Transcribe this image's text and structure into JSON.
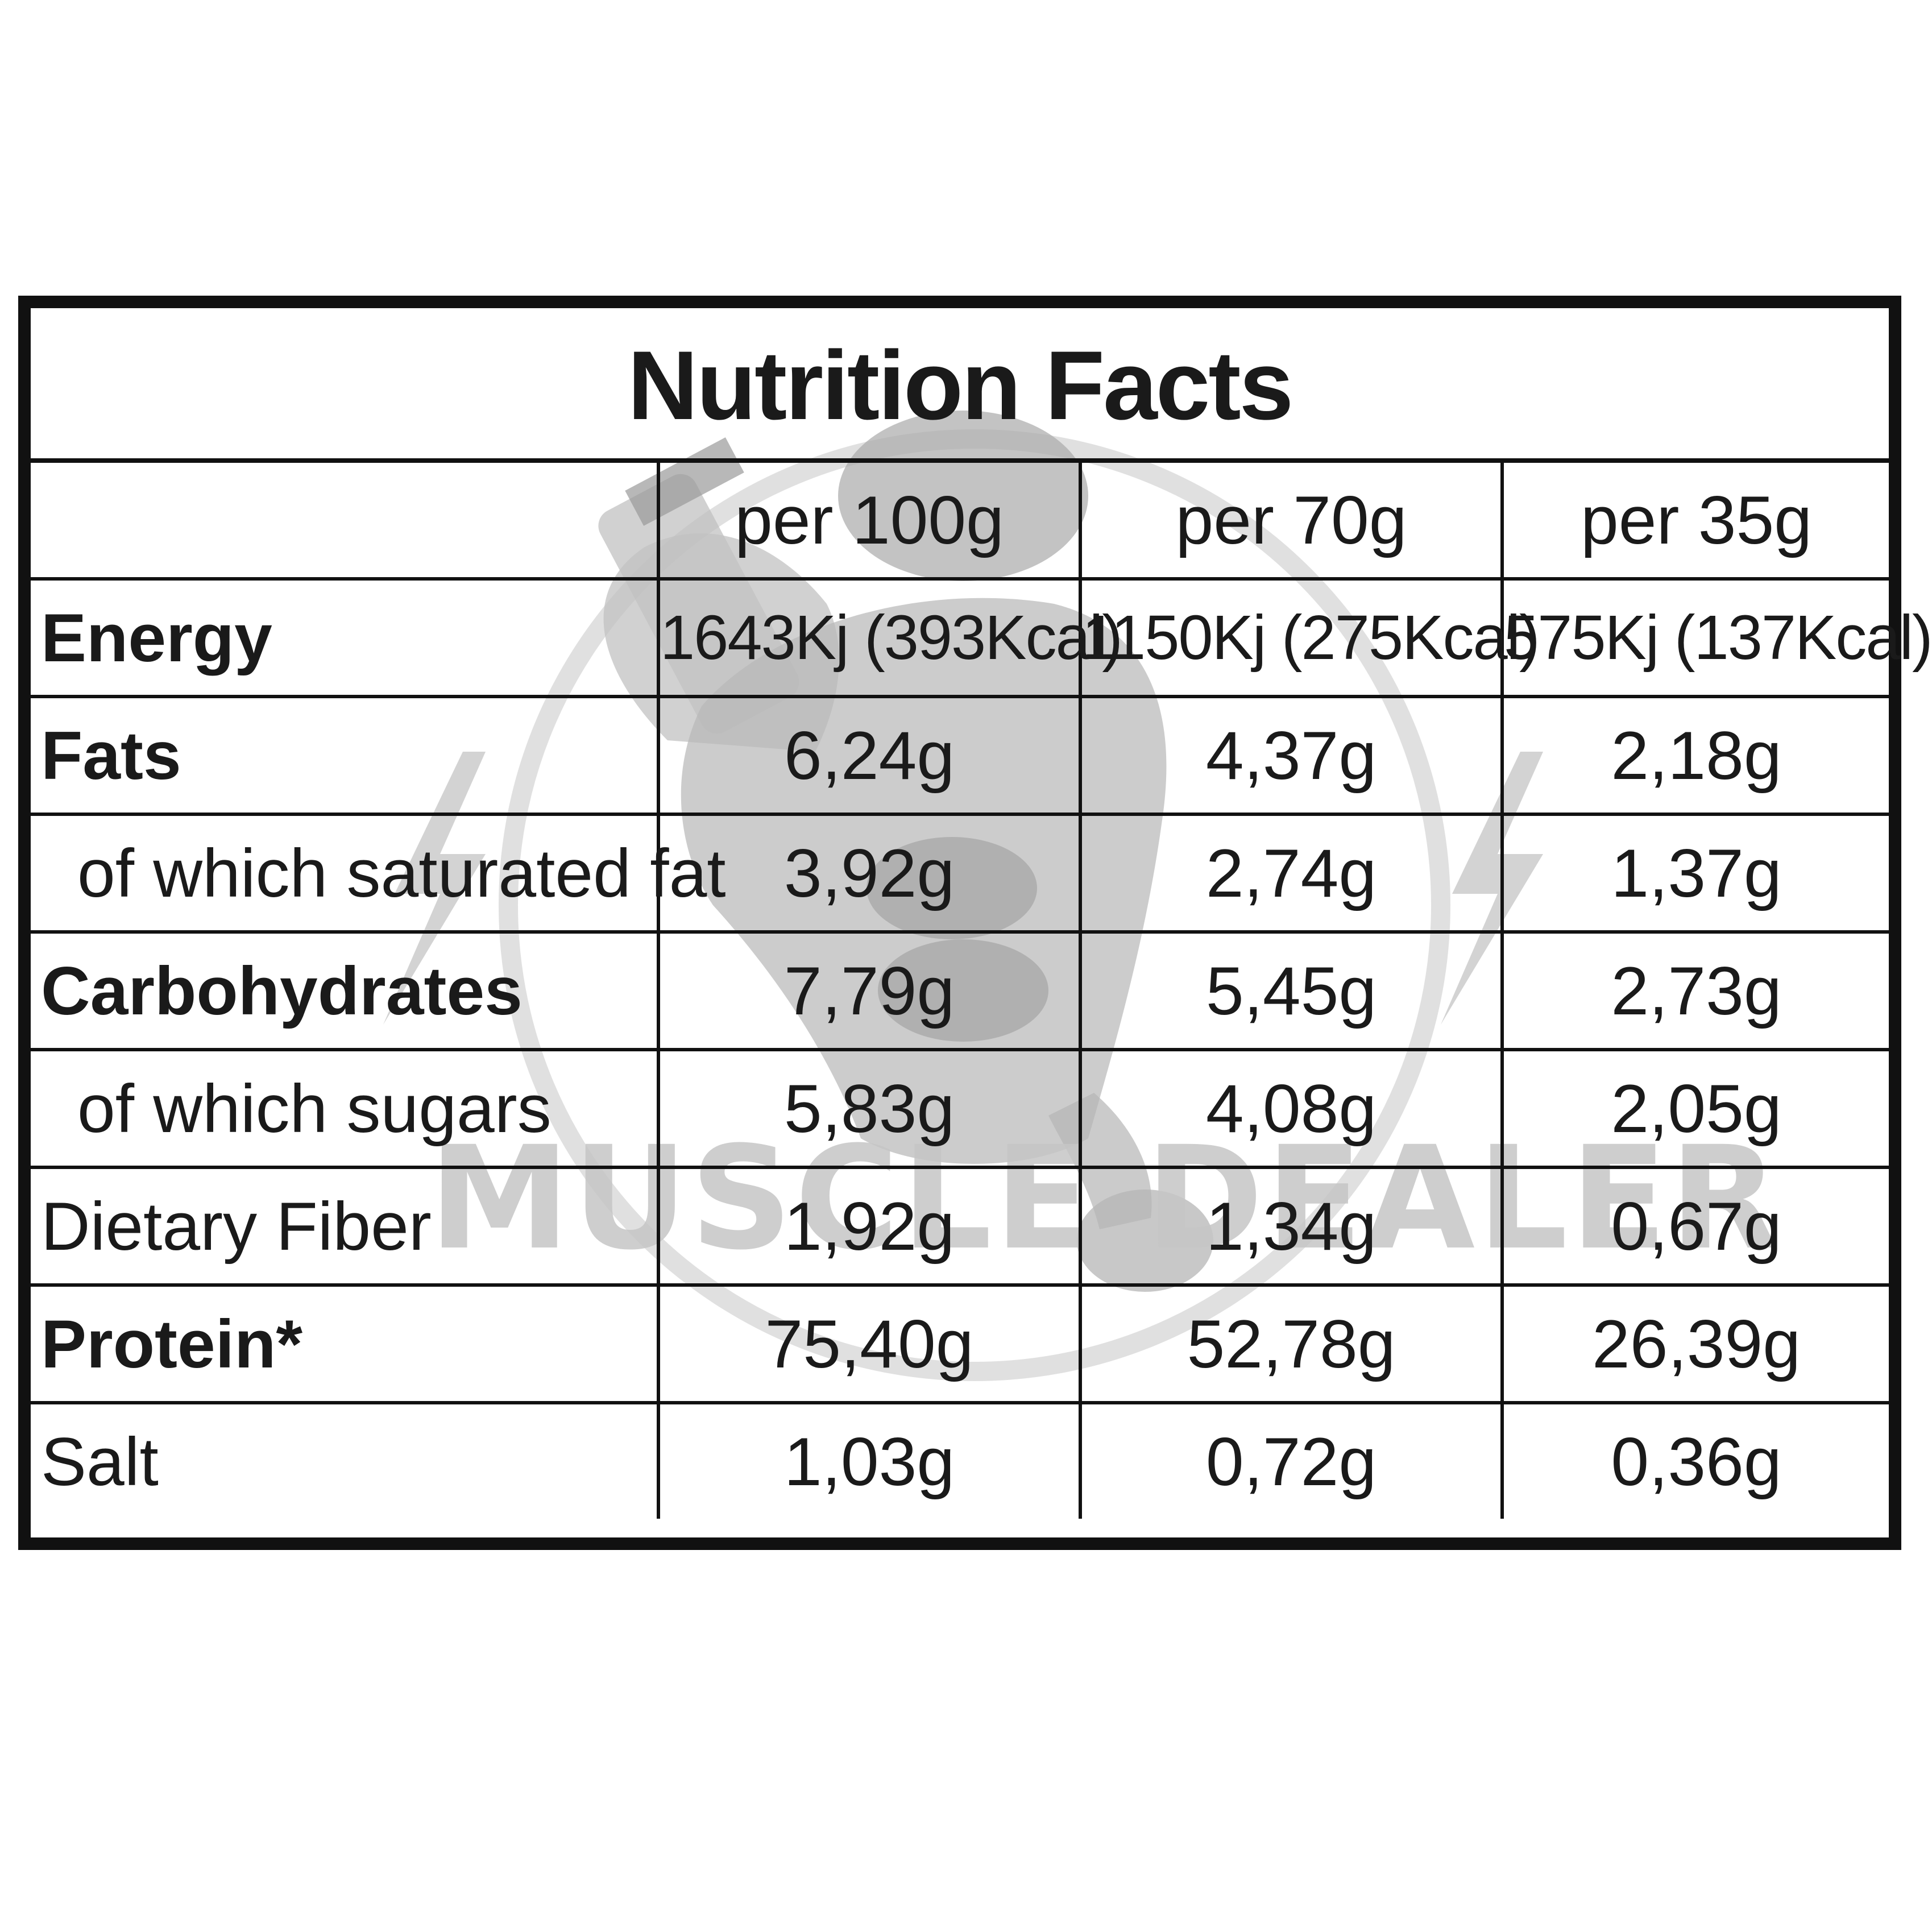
{
  "title": "Nutrition Facts",
  "watermark": {
    "text": "MUSCLE DEALER",
    "logo": "muscle-man-drinking-shaker-logo"
  },
  "columns": [
    "",
    "per 100g",
    "per 70g",
    "per 35g"
  ],
  "rows": [
    {
      "label": "Energy",
      "bold": true,
      "indent": false,
      "values": [
        "1643Kj (393Kcal)",
        "1150Kj (275Kcal)",
        "575Kj (137Kcal)"
      ]
    },
    {
      "label": "Fats",
      "bold": true,
      "indent": false,
      "values": [
        "6,24g",
        "4,37g",
        "2,18g"
      ]
    },
    {
      "label": "of which saturated fat",
      "bold": false,
      "indent": true,
      "values": [
        "3,92g",
        "2,74g",
        "1,37g"
      ]
    },
    {
      "label": "Carbohydrates",
      "bold": true,
      "indent": false,
      "values": [
        "7,79g",
        "5,45g",
        "2,73g"
      ]
    },
    {
      "label": "of which sugars",
      "bold": false,
      "indent": true,
      "values": [
        "5,83g",
        "4,08g",
        "2,05g"
      ]
    },
    {
      "label": "Dietary Fiber",
      "bold": false,
      "indent": false,
      "values": [
        "1,92g",
        "1,34g",
        "0,67g"
      ]
    },
    {
      "label": "Protein*",
      "bold": true,
      "indent": false,
      "values": [
        "75,40g",
        "52,78g",
        "26,39g"
      ]
    },
    {
      "label": "Salt",
      "bold": false,
      "indent": false,
      "values": [
        "1,03g",
        "0,72g",
        "0,36g"
      ]
    }
  ],
  "colors": {
    "border": "#111111",
    "text": "#1a1a1a",
    "watermark": "#c6c6c6"
  }
}
